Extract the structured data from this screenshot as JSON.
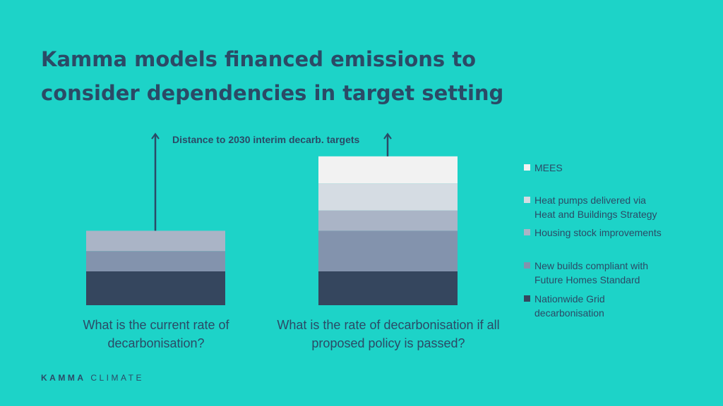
{
  "title": "Kamma models financed emissions to consider dependencies in target setting",
  "annotation": "Distance to 2030 interim decarb. targets",
  "brand": {
    "strong": "KAMMA",
    "light": "CLIMATE"
  },
  "chart_data": {
    "type": "bar",
    "stacked": true,
    "categories": [
      "What is the current rate of decarbonisation?",
      "What is the rate of decarbonisation if all proposed policy is passed?"
    ],
    "series": [
      {
        "name": "Nationwide Grid\ndecarbonisation",
        "color": "#35465e",
        "values": [
          1.0,
          1.0
        ]
      },
      {
        "name": "New builds compliant with\nFuture Homes Standard",
        "color": "#8393ad",
        "values": [
          0.6,
          1.2
        ]
      },
      {
        "name": "Housing stock improvements",
        "color": "#aab4c6",
        "values": [
          0.6,
          0.6
        ]
      },
      {
        "name": "Heat pumps delivered via\nHeat and Buildings Strategy",
        "color": "#d5dce3",
        "values": [
          0,
          0.8
        ]
      },
      {
        "name": "MEES",
        "color": "#f2f2f2",
        "values": [
          0,
          0.8
        ]
      }
    ],
    "ylim": [
      0,
      4.4
    ],
    "xlabel": "",
    "ylabel": "",
    "grid": false
  }
}
